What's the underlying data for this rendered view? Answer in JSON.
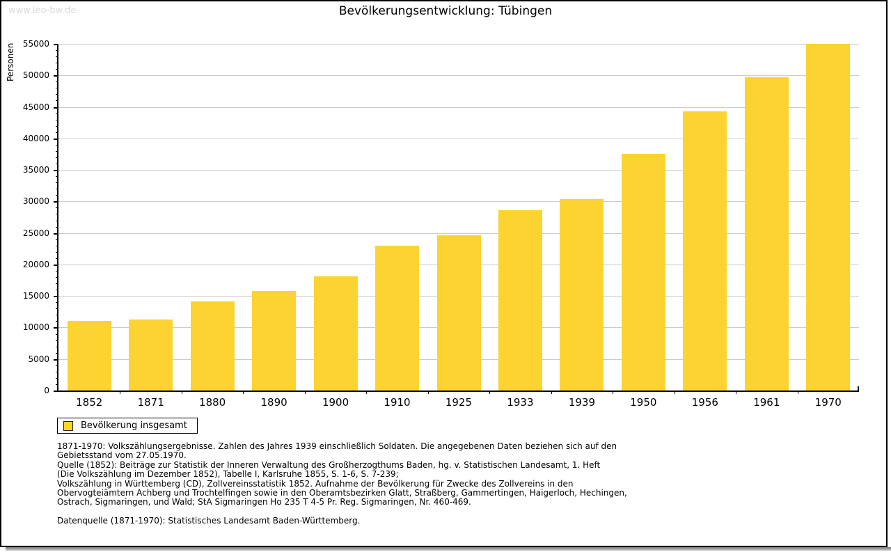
{
  "watermark": "www.leo-bw.de",
  "title": "Bevölkerungsentwicklung: Tübingen",
  "colors": {
    "bar": "#FCD330",
    "grid": "#CCCCCC",
    "axis": "#000000",
    "watermark": "#DADADA"
  },
  "chart_data": {
    "type": "bar",
    "title": "Bevölkerungsentwicklung: Tübingen",
    "categories": [
      "1852",
      "1871",
      "1880",
      "1890",
      "1900",
      "1910",
      "1925",
      "1933",
      "1939",
      "1950",
      "1956",
      "1961",
      "1970"
    ],
    "values": [
      11000,
      11300,
      14100,
      15800,
      18100,
      23000,
      24600,
      28600,
      30400,
      37500,
      44300,
      49700,
      55000
    ],
    "xlabel": "",
    "ylabel": "Personen",
    "ylim": [
      0,
      55000
    ],
    "ytick_step": 5000,
    "yminor_step": 1000,
    "grid": "horizontal-major-only",
    "legend_position": "bottom-left"
  },
  "legend": {
    "label": "Bevölkerung insgesamt"
  },
  "footer": {
    "note_lines": [
      "1871-1970: Volkszählungsergebnisse. Zahlen des Jahres 1939 einschließlich Soldaten. Die angegebenen Daten beziehen sich auf den",
      "Gebietsstand vom 27.05.1970.",
      "Quelle (1852): Beiträge zur Statistik der Inneren Verwaltung des Großherzogthums Baden, hg. v. Statistischen Landesamt, 1. Heft",
      "(Die Volkszählung im Dezember 1852), Tabelle I, Karlsruhe 1855, S. 1-6, S. 7-239;",
      "Volkszählung in Württemberg (CD), Zollvereinsstatistik 1852. Aufnahme der Bevölkerung für Zwecke des Zollvereins in den",
      "Obervogteiämtern Achberg und Trochtelfingen sowie in den Oberamtsbezirken Glatt, Straßberg, Gammertingen, Haigerloch, Hechingen,",
      "Ostrach, Sigmaringen, und Wald; StA Sigmaringen Ho 235 T 4-5 Pr. Reg. Sigmaringen, Nr. 460-469."
    ],
    "source_line": "Datenquelle (1871-1970): Statistisches Landesamt Baden-Württemberg."
  }
}
